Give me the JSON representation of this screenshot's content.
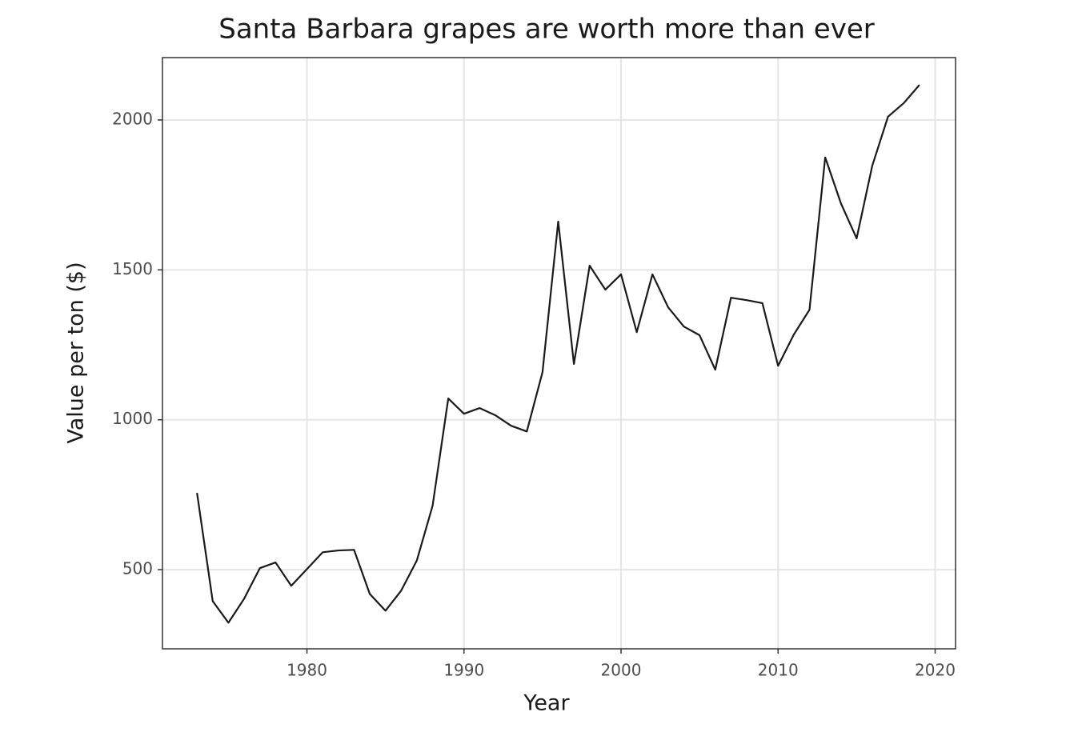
{
  "chart_data": {
    "type": "line",
    "title": "Santa Barbara grapes are worth more than ever",
    "x_label": "Year",
    "y_label": "Value per ton ($)",
    "x": [
      1973,
      1974,
      1975,
      1976,
      1977,
      1978,
      1979,
      1980,
      1981,
      1982,
      1983,
      1984,
      1985,
      1986,
      1987,
      1988,
      1989,
      1990,
      1991,
      1992,
      1993,
      1994,
      1995,
      1996,
      1997,
      1998,
      1999,
      2000,
      2001,
      2002,
      2003,
      2004,
      2005,
      2006,
      2007,
      2008,
      2009,
      2010,
      2011,
      2012,
      2013,
      2014,
      2015,
      2016,
      2017,
      2018,
      2019
    ],
    "values": [
      756,
      395,
      323,
      403,
      505,
      524,
      446,
      502,
      558,
      564,
      566,
      419,
      363,
      430,
      531,
      713,
      1071,
      1020,
      1039,
      1015,
      980,
      961,
      1159,
      1661,
      1186,
      1514,
      1434,
      1485,
      1292,
      1485,
      1375,
      1311,
      1282,
      1167,
      1407,
      1399,
      1389,
      1180,
      1284,
      1367,
      1875,
      1722,
      1605,
      1848,
      2011,
      2056,
      2117
    ],
    "color": "#1a1a1a",
    "xlim": [
      1970.8,
      2021.3
    ],
    "xticks": [
      1980,
      1990,
      2000,
      2010,
      2020
    ],
    "ylim": [
      236,
      2208
    ],
    "yticks": [
      500,
      1000,
      1500,
      2000
    ],
    "grid": true
  }
}
